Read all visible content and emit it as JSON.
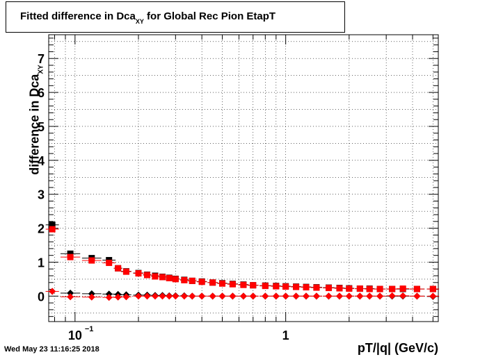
{
  "chart_data": {
    "type": "scatter",
    "title_main": "Fitted difference in Dca",
    "title_sub": "XY",
    "title_rest": " for Global Rec Pion EtapT",
    "ylabel_main": "difference in Dca",
    "ylabel_sub": "XY",
    "xlabel": "pT/|q| (GeV/c)",
    "x_scale": "log",
    "xlim": [
      0.075,
      5.3
    ],
    "ylim": [
      -0.75,
      7.7
    ],
    "yticks": [
      0,
      1,
      2,
      3,
      4,
      5,
      6,
      7
    ],
    "xtick_labels": [
      {
        "x": 0.1,
        "base": "10",
        "exp": "−1"
      },
      {
        "x": 1,
        "base": "1",
        "exp": ""
      }
    ],
    "grid": true,
    "series": [
      {
        "color": "#000000",
        "marker": "square",
        "points": [
          [
            0.078,
            2.1
          ],
          [
            0.095,
            1.25
          ],
          [
            0.12,
            1.12
          ],
          [
            0.145,
            1.06
          ],
          [
            0.16,
            0.82
          ],
          [
            0.175,
            0.73
          ],
          [
            0.2,
            0.68
          ],
          [
            0.22,
            0.63
          ],
          [
            0.24,
            0.6
          ],
          [
            0.26,
            0.57
          ],
          [
            0.28,
            0.54
          ],
          [
            0.3,
            0.51
          ],
          [
            0.33,
            0.48
          ],
          [
            0.36,
            0.45
          ],
          [
            0.4,
            0.43
          ],
          [
            0.45,
            0.4
          ],
          [
            0.5,
            0.38
          ],
          [
            0.56,
            0.36
          ],
          [
            0.63,
            0.34
          ],
          [
            0.7,
            0.32
          ],
          [
            0.8,
            0.31
          ],
          [
            0.9,
            0.3
          ],
          [
            1.0,
            0.29
          ],
          [
            1.12,
            0.28
          ],
          [
            1.25,
            0.27
          ],
          [
            1.4,
            0.26
          ],
          [
            1.6,
            0.25
          ],
          [
            1.8,
            0.24
          ],
          [
            2.0,
            0.23
          ],
          [
            2.25,
            0.22
          ],
          [
            2.5,
            0.22
          ],
          [
            2.8,
            0.21
          ],
          [
            3.2,
            0.21
          ],
          [
            3.6,
            0.21
          ],
          [
            4.2,
            0.21
          ],
          [
            5.0,
            0.21
          ]
        ]
      },
      {
        "color": "#ff0000",
        "marker": "square",
        "points": [
          [
            0.078,
            1.97
          ],
          [
            0.095,
            1.15
          ],
          [
            0.12,
            1.05
          ],
          [
            0.145,
            0.98
          ],
          [
            0.16,
            0.82
          ],
          [
            0.175,
            0.72
          ],
          [
            0.2,
            0.67
          ],
          [
            0.22,
            0.62
          ],
          [
            0.24,
            0.58
          ],
          [
            0.26,
            0.56
          ],
          [
            0.28,
            0.53
          ],
          [
            0.3,
            0.5
          ],
          [
            0.33,
            0.47
          ],
          [
            0.36,
            0.45
          ],
          [
            0.4,
            0.42
          ],
          [
            0.45,
            0.4
          ],
          [
            0.5,
            0.37
          ],
          [
            0.56,
            0.35
          ],
          [
            0.63,
            0.33
          ],
          [
            0.7,
            0.32
          ],
          [
            0.8,
            0.3
          ],
          [
            0.9,
            0.29
          ],
          [
            1.0,
            0.28
          ],
          [
            1.12,
            0.27
          ],
          [
            1.25,
            0.26
          ],
          [
            1.4,
            0.25
          ],
          [
            1.6,
            0.24
          ],
          [
            1.8,
            0.23
          ],
          [
            2.0,
            0.22
          ],
          [
            2.25,
            0.22
          ],
          [
            2.5,
            0.21
          ],
          [
            2.8,
            0.21
          ],
          [
            3.2,
            0.21
          ],
          [
            3.6,
            0.22
          ],
          [
            4.2,
            0.21
          ],
          [
            5.0,
            0.21
          ]
        ]
      },
      {
        "color": "#000000",
        "marker": "diamond",
        "points": [
          [
            0.078,
            0.14
          ],
          [
            0.095,
            0.09
          ],
          [
            0.12,
            0.07
          ],
          [
            0.145,
            0.06
          ],
          [
            0.16,
            0.05
          ],
          [
            0.175,
            0.04
          ],
          [
            0.2,
            0.03
          ],
          [
            0.22,
            0.03
          ],
          [
            0.24,
            0.02
          ],
          [
            0.26,
            0.02
          ],
          [
            0.28,
            0.01
          ],
          [
            0.3,
            0.01
          ],
          [
            0.33,
            0.01
          ],
          [
            0.36,
            0.0
          ],
          [
            0.4,
            0.0
          ],
          [
            0.45,
            0.0
          ],
          [
            0.5,
            0.0
          ],
          [
            0.56,
            0.0
          ],
          [
            0.63,
            0.0
          ],
          [
            0.7,
            0.0
          ],
          [
            0.8,
            0.0
          ],
          [
            0.9,
            0.0
          ],
          [
            1.0,
            0.0
          ],
          [
            1.12,
            0.0
          ],
          [
            1.25,
            0.0
          ],
          [
            1.4,
            0.0
          ],
          [
            1.6,
            0.0
          ],
          [
            1.8,
            0.0
          ],
          [
            2.0,
            0.0
          ],
          [
            2.25,
            0.0
          ],
          [
            2.5,
            0.0
          ],
          [
            2.8,
            0.0
          ],
          [
            3.2,
            0.0
          ],
          [
            3.6,
            0.0
          ],
          [
            4.2,
            0.0
          ],
          [
            5.0,
            -0.01
          ]
        ]
      },
      {
        "color": "#ff0000",
        "marker": "diamond",
        "points": [
          [
            0.078,
            0.14
          ],
          [
            0.095,
            -0.02
          ],
          [
            0.12,
            -0.03
          ],
          [
            0.145,
            -0.04
          ],
          [
            0.16,
            -0.03
          ],
          [
            0.175,
            -0.02
          ],
          [
            0.2,
            0.0
          ],
          [
            0.22,
            0.0
          ],
          [
            0.24,
            0.0
          ],
          [
            0.26,
            0.0
          ],
          [
            0.28,
            0.0
          ],
          [
            0.3,
            0.0
          ],
          [
            0.33,
            0.0
          ],
          [
            0.36,
            0.0
          ],
          [
            0.4,
            0.0
          ],
          [
            0.45,
            0.0
          ],
          [
            0.5,
            0.0
          ],
          [
            0.56,
            0.0
          ],
          [
            0.63,
            0.0
          ],
          [
            0.7,
            0.0
          ],
          [
            0.8,
            0.0
          ],
          [
            0.9,
            0.0
          ],
          [
            1.0,
            0.0
          ],
          [
            1.12,
            0.0
          ],
          [
            1.25,
            0.0
          ],
          [
            1.4,
            0.0
          ],
          [
            1.6,
            0.0
          ],
          [
            1.8,
            0.0
          ],
          [
            2.0,
            0.0
          ],
          [
            2.25,
            0.0
          ],
          [
            2.5,
            0.0
          ],
          [
            2.8,
            0.0
          ],
          [
            3.2,
            0.01
          ],
          [
            3.6,
            0.01
          ],
          [
            4.2,
            0.0
          ],
          [
            5.0,
            0.0
          ]
        ]
      }
    ]
  },
  "timestamp": "Wed May 23 11:16:25 2018"
}
